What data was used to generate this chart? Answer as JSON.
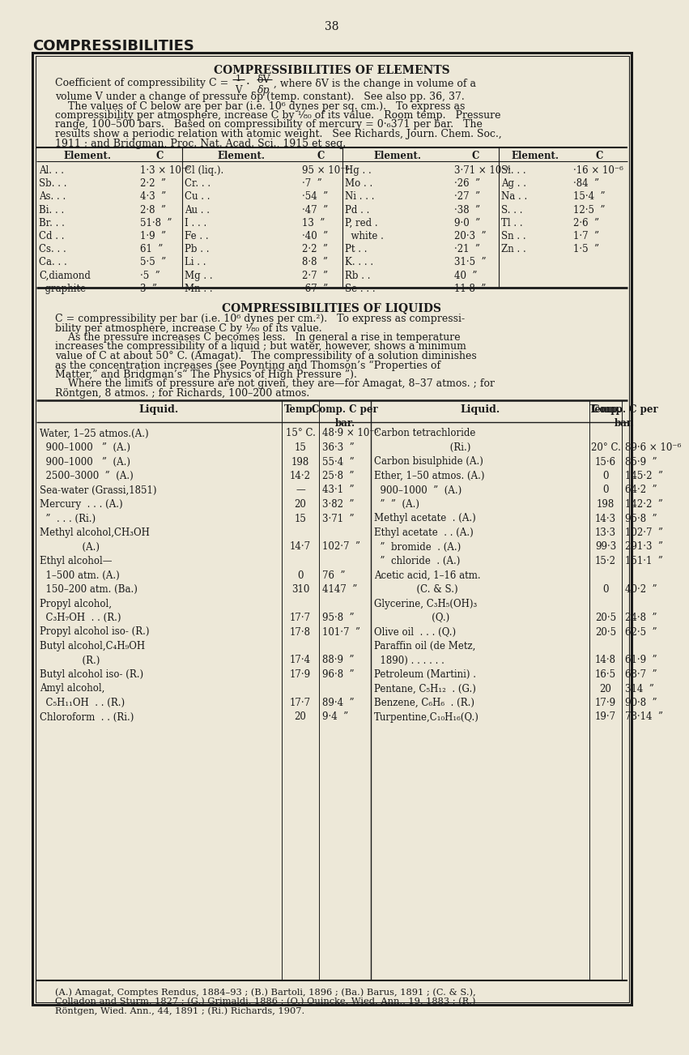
{
  "page_number": "38",
  "bg_color": "#ede8d8",
  "elements_rows": [
    [
      "Al. . .",
      "1·3 × 10⁻⁶",
      "Cl (liq.).",
      "95 × 10⁻⁶",
      "Hg . .",
      "3·71 × 10⁻⁶",
      "Si. . .",
      "·16 × 10⁻⁶"
    ],
    [
      "Sb. . .",
      "2·2  ”",
      "Cr. . .",
      "·7  ”",
      "Mo . .",
      "·26  ”",
      "Ag . .",
      "·84  ”"
    ],
    [
      "As. . .",
      "4·3  ”",
      "Cu . .",
      "·54  ”",
      "Ni . . .",
      "·27  ”",
      "Na . .",
      "15·4  ”"
    ],
    [
      "Bi. . .",
      "2·8  ”",
      "Au . .",
      "·47  ”",
      "Pd . .",
      "·38  ”",
      "S. . .",
      "12·5  ”"
    ],
    [
      "Br. . .",
      "51·8  ”",
      "I . . .",
      "13  ”",
      "P, red .",
      "9·0  ”",
      "Tl . .",
      "2·6  ”"
    ],
    [
      "Cd . .",
      "1·9  ”",
      "Fe . .",
      "·40  ”",
      "  white .",
      "20·3  ”",
      "Sn . .",
      "1·7  ”"
    ],
    [
      "Cs. . .",
      "61  ”",
      "Pb . .",
      "2·2  ”",
      "Pt . .",
      "·21  ”",
      "Zn . .",
      "1·5  ”"
    ],
    [
      "Ca. . .",
      "5·5  ”",
      "Li . .",
      "8·8  ”",
      "K. . . .",
      "31·5  ”",
      "",
      ""
    ],
    [
      "C,diamond",
      "·5  ”",
      "Mg . .",
      "2·7  ”",
      "Rb . .",
      "40  ”",
      "",
      ""
    ],
    [
      "  graphite",
      "3  ”",
      "Mn . .",
      "·67  ”",
      "Se . . .",
      "11·8  ”",
      "",
      ""
    ]
  ],
  "liquids_rows": [
    [
      "Water, 1–25 atmos.(A.)",
      "15° C.",
      "48·9 × 10⁻⁶",
      "Carbon tetrachloride",
      "",
      ""
    ],
    [
      "  900–1000   ”  (A.)",
      "15",
      "36·3  ”",
      "                         (Ri.)",
      "20° C.",
      "89·6 × 10⁻⁶"
    ],
    [
      "  900–1000   ”  (A.)",
      "198",
      "55·4  ”",
      "Carbon bisulphide (A.)",
      "15·6",
      "85·9  ”"
    ],
    [
      "  2500–3000  ”  (A.)",
      "14·2",
      "25·8  ”",
      "Ether, 1–50 atmos. (A.)",
      "0",
      "145·2  ”"
    ],
    [
      "Sea-water (Grassi,1851)",
      "—",
      "43·1  ”",
      "  900–1000  ”  (A.)",
      "0",
      "64·2  ”"
    ],
    [
      "Mercury  . . . (A.)",
      "20",
      "3·82  ”",
      "  ”  ”  (A.)",
      "198",
      "142·2  ”"
    ],
    [
      "  ”  . . . (Ri.)",
      "15",
      "3·71  ”",
      "Methyl acetate  . (A.)",
      "14·3",
      "95·8  ”"
    ],
    [
      "Methyl alcohol,CH₃OH",
      "",
      "",
      "Ethyl acetate  . . (A.)",
      "13·3",
      "102·7  ”"
    ],
    [
      "              (A.)",
      "14·7",
      "102·7  ”",
      "  ”  bromide  . (A.)",
      "99·3",
      "291·3  ”"
    ],
    [
      "Ethyl alcohol—",
      "",
      "",
      "  ”  chloride  . (A.)",
      "15·2",
      "151·1  ”"
    ],
    [
      "  1–500 atm. (A.)",
      "0",
      "76  ”",
      "Acetic acid, 1–16 atm.",
      "",
      ""
    ],
    [
      "  150–200 atm. (Ba.)",
      "310",
      "4147  ”",
      "              (C. & S.)",
      "0",
      "40·2  ”"
    ],
    [
      "Propyl alcohol,",
      "",
      "",
      "Glycerine, C₃H₅(OH)₃",
      "",
      ""
    ],
    [
      "  C₃H₇OH  . . (R.)",
      "17·7",
      "95·8  ”",
      "                   (Q.)",
      "20·5",
      "24·8  ”"
    ],
    [
      "Propyl alcohol iso- (R.)",
      "17·8",
      "101·7  ”",
      "Olive oil  . . . (Q.)",
      "20·5",
      "62·5  ”"
    ],
    [
      "Butyl alcohol,C₄H₉OH",
      "",
      "",
      "Paraffin oil (de Metz,",
      "",
      ""
    ],
    [
      "              (R.)",
      "17·4",
      "88·9  ”",
      "  1890) . . . . . .",
      "14·8",
      "61·9  ”"
    ],
    [
      "Butyl alcohol iso- (R.)",
      "17·9",
      "96·8  ”",
      "Petroleum (Martini) .",
      "16·5",
      "68·7  ”"
    ],
    [
      "Amyl alcohol,",
      "",
      "",
      "Pentane, C₅H₁₂  . (G.)",
      "20",
      "314  ”"
    ],
    [
      "  C₅H₁₁OH  . . (R.)",
      "17·7",
      "89·4  ”",
      "Benzene, C₆H₆  . (R.)",
      "17·9",
      "90·8  ”"
    ],
    [
      "Chloroform  . . (Ri.)",
      "20",
      "9·4  ”",
      "Turpentine,C₁₀H₁₆(Q.)",
      "19·7",
      "78·14  ”"
    ]
  ],
  "footnote_lines": [
    "(A.) Amagat, Comptes Rendus, 1884–93 ; (B.) Bartoli, 1896 ; (Ba.) Barus, 1891 ; (C. & S.),",
    "Colladon and Sturm, 1827 ; (G.) Grimaldi, 1886 ; (Q.) Quincke, Wied. Ann., 19, 1883 ; (R.)",
    "Röntgen, Wied. Ann., 44, 1891 ; (Ri.) Richards, 1907."
  ]
}
